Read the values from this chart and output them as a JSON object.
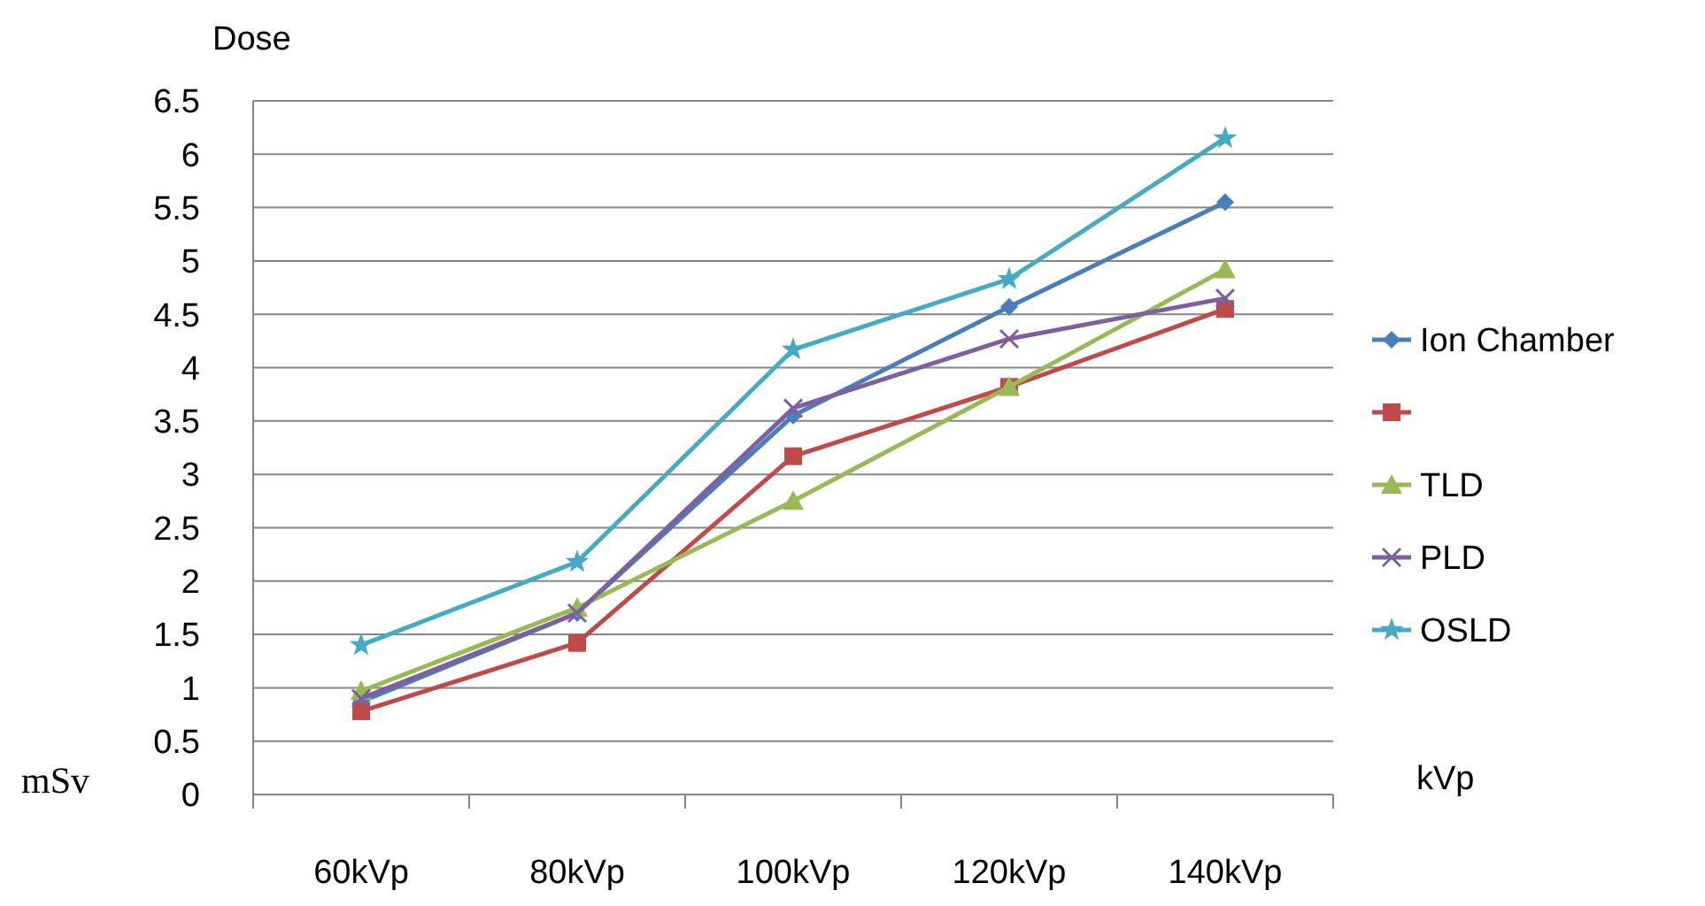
{
  "chart_data": {
    "type": "line",
    "ylabel": "Dose",
    "xlabel": "kVp",
    "annotations": [
      "mSv"
    ],
    "categories": [
      "60kVp",
      "80kVp",
      "100kVp",
      "120kVp",
      "140kVp"
    ],
    "ylim": [
      0,
      6.5
    ],
    "yticks": [
      0,
      0.5,
      1,
      1.5,
      2,
      2.5,
      3,
      3.5,
      4,
      4.5,
      5,
      5.5,
      6,
      6.5
    ],
    "grid": "y",
    "legend": "right",
    "series": [
      {
        "name": "Ion Chamber",
        "color": "#4a7ebb",
        "marker": "diamond",
        "values": [
          0.87,
          1.7,
          3.55,
          4.57,
          5.55
        ]
      },
      {
        "color": "#be4b48",
        "marker": "square",
        "values": [
          0.78,
          1.42,
          3.17,
          3.82,
          4.55
        ]
      },
      {
        "name": "TLD",
        "color": "#98b954",
        "marker": "triangle",
        "values": [
          0.97,
          1.75,
          2.75,
          3.82,
          4.92
        ]
      },
      {
        "name": "PLD",
        "color": "#7d60a0",
        "marker": "cross",
        "values": [
          0.9,
          1.7,
          3.62,
          4.27,
          4.65
        ]
      },
      {
        "name": "OSLD",
        "color": "#46aac5",
        "marker": "star",
        "values": [
          1.4,
          2.18,
          4.17,
          4.83,
          6.15
        ]
      }
    ]
  }
}
